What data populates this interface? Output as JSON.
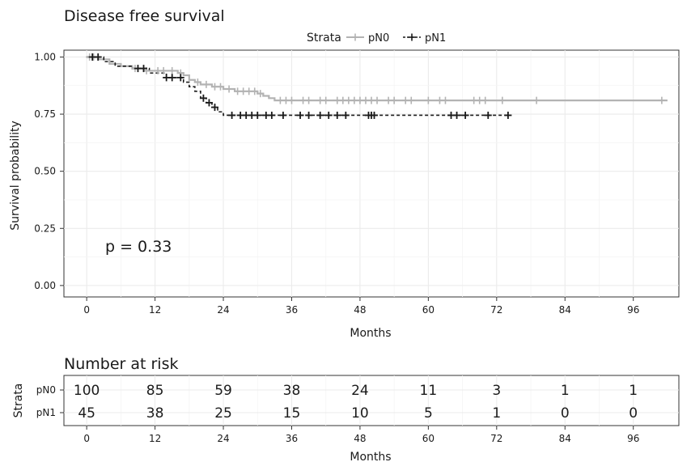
{
  "chart_data": [
    {
      "type": "line",
      "subtype": "kaplan-meier step",
      "title": "Disease free survival",
      "xlabel": "Months",
      "ylabel": "Survival probability",
      "xlim": [
        -4,
        104
      ],
      "ylim": [
        -0.05,
        1.03
      ],
      "xticks": [
        0,
        12,
        24,
        36,
        48,
        60,
        72,
        84,
        96
      ],
      "yticks": [
        0.0,
        0.25,
        0.5,
        0.75,
        1.0
      ],
      "ytick_labels": [
        "0.00",
        "0.25",
        "0.50",
        "0.75",
        "1.00"
      ],
      "grid": true,
      "legend": {
        "title": "Strata",
        "position": "top",
        "entries": [
          "pN0",
          "pN1"
        ]
      },
      "annotation": "p = 0.33",
      "series": [
        {
          "name": "pN0",
          "color": "#b3b3b3",
          "dash": "solid",
          "x": [
            0,
            2,
            4,
            6,
            8,
            10,
            14,
            16,
            17,
            18,
            19,
            20,
            22,
            24,
            26,
            28,
            30,
            31,
            32,
            33,
            102
          ],
          "y": [
            1.0,
            0.99,
            0.97,
            0.96,
            0.95,
            0.94,
            0.94,
            0.93,
            0.92,
            0.9,
            0.89,
            0.88,
            0.87,
            0.86,
            0.85,
            0.85,
            0.84,
            0.83,
            0.82,
            0.81,
            0.81
          ],
          "censor_x": [
            0.5,
            1.2,
            8.5,
            10.5,
            12.5,
            13.5,
            15,
            16.5,
            19.5,
            21,
            22.5,
            23.5,
            25,
            26.5,
            27.5,
            28.5,
            29.5,
            30.5,
            34,
            35,
            36,
            38,
            39,
            41,
            42,
            44,
            45,
            46,
            47,
            48,
            49,
            50,
            51,
            53,
            54,
            56,
            57,
            60,
            62,
            63,
            68,
            69,
            70,
            73,
            79,
            101
          ]
        },
        {
          "name": "pN1",
          "color": "#1a1a1a",
          "dash": "dashed",
          "x": [
            0,
            3,
            5,
            8,
            11,
            14,
            17,
            18,
            19,
            20,
            21,
            22,
            23,
            24,
            74
          ],
          "y": [
            1.0,
            0.98,
            0.96,
            0.95,
            0.93,
            0.91,
            0.89,
            0.87,
            0.85,
            0.82,
            0.8,
            0.78,
            0.76,
            0.745,
            0.745
          ],
          "censor_x": [
            1,
            2,
            9,
            10,
            14,
            15,
            16.5,
            20.5,
            21.5,
            22.5,
            25.5,
            27,
            28,
            29,
            30,
            31.5,
            32.5,
            34.5,
            37.5,
            39,
            41,
            42.5,
            44,
            45.5,
            49.5,
            50,
            50.5,
            64,
            65,
            66.5,
            70.5,
            74
          ]
        }
      ]
    },
    {
      "type": "table",
      "title": "Number at risk",
      "ylabel": "Strata",
      "xlabel": "Months",
      "xticks": [
        0,
        12,
        24,
        36,
        48,
        60,
        72,
        84,
        96
      ],
      "rows": [
        {
          "name": "pN0",
          "values": [
            100,
            85,
            59,
            38,
            24,
            11,
            3,
            1,
            1
          ]
        },
        {
          "name": "pN1",
          "values": [
            45,
            38,
            25,
            15,
            10,
            5,
            1,
            0,
            0
          ]
        }
      ]
    }
  ]
}
